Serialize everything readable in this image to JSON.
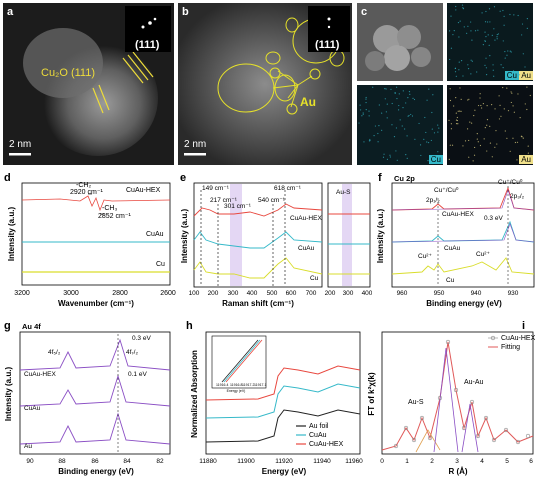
{
  "panels": {
    "a": {
      "label": "a",
      "inset": "(111)",
      "annotation": "Cu₂O (111)",
      "scalebar": "2 nm"
    },
    "b": {
      "label": "b",
      "inset": "(111)",
      "annotation": "Au",
      "scalebar": "2 nm"
    },
    "c": {
      "label": "c",
      "maps": [
        {
          "tags": [
            "Cu",
            "Au"
          ]
        },
        {
          "tags": [
            "Cu"
          ]
        },
        {
          "tags": [
            "Au"
          ]
        }
      ]
    },
    "d": {
      "label": "d",
      "ylabel": "Intensity (a.u.)",
      "xlabel": "Wavenumber (cm⁻¹)",
      "xticks": [
        "3200",
        "3000",
        "2800",
        "2600"
      ],
      "series_labels": [
        "CuAu-HEX",
        "CuAu",
        "Cu"
      ],
      "annotations": [
        "-CH₂",
        "2920 cm⁻¹",
        "-CH₃",
        "2852 cm⁻¹"
      ]
    },
    "e": {
      "label": "e",
      "ylabel": "Intensity (a.u.)",
      "xlabel": "Raman shift (cm⁻¹)",
      "xticks": [
        "100",
        "200",
        "300",
        "400",
        "500",
        "600",
        "700"
      ],
      "xticks2": [
        "200",
        "300",
        "400"
      ],
      "series_labels": [
        "CuAu-HEX",
        "CuAu",
        "Cu"
      ],
      "side_label": "Au-S",
      "annotations": [
        "149 cm⁻¹",
        "217 cm⁻¹",
        "301 cm⁻¹",
        "540 cm⁻¹",
        "618 cm⁻¹"
      ]
    },
    "f": {
      "label": "f",
      "title": "Cu 2p",
      "ylabel": "Intensity (a.u.)",
      "xlabel": "Binding energy (eV)",
      "xticks": [
        "960",
        "950",
        "940",
        "930"
      ],
      "series_labels": [
        "CuAu-HEX",
        "CuAu",
        "Cu"
      ],
      "annotations": [
        "2p₁/₂",
        "Cu⁺/Cu⁰",
        "2p₃/₂",
        "Cu⁺/Cu⁰",
        "0.3 eV",
        "Cu²⁺",
        "Cu²⁺"
      ]
    },
    "g": {
      "label": "g",
      "title": "Au 4f",
      "ylabel": "Intensity (a.u.)",
      "xlabel": "Binding energy (eV)",
      "xticks": [
        "90",
        "88",
        "86",
        "84",
        "82"
      ],
      "series_labels": [
        "CuAu-HEX",
        "CuAu",
        "Au"
      ],
      "annotations": [
        "4f₅/₂",
        "4f₇/₂",
        "0.3 eV",
        "0.1 eV"
      ]
    },
    "h": {
      "label": "h",
      "ylabel": "Normalized Absorption",
      "xlabel": "Energy (eV)",
      "xticks": [
        "11880",
        "11900",
        "11920",
        "11940",
        "11960"
      ],
      "inset_xticks": [
        "11916.4",
        "11916.8",
        "11917.2",
        "11917.1"
      ],
      "inset_xlabel": "Energy (eV)",
      "legend": [
        "Au foil",
        "CuAu",
        "CuAu-HEX"
      ]
    },
    "i": {
      "label": "i",
      "ylabel": "FT of k²χ(k)",
      "xlabel": "R (Å)",
      "xticks": [
        "0",
        "1",
        "2",
        "3",
        "4",
        "5",
        "6"
      ],
      "legend": [
        "CuAu-HEX",
        "Fitting"
      ],
      "annotations": [
        "Au-S",
        "Au-Au"
      ]
    }
  },
  "colors": {
    "red": "#e8473e",
    "cyan": "#35b9c9",
    "yellow": "#d9dd2c",
    "purple": "#8a4ec4",
    "black": "#222222",
    "fit": "#e05a5a",
    "shade": "#d9c6f0",
    "circle": "#e6e12a"
  }
}
